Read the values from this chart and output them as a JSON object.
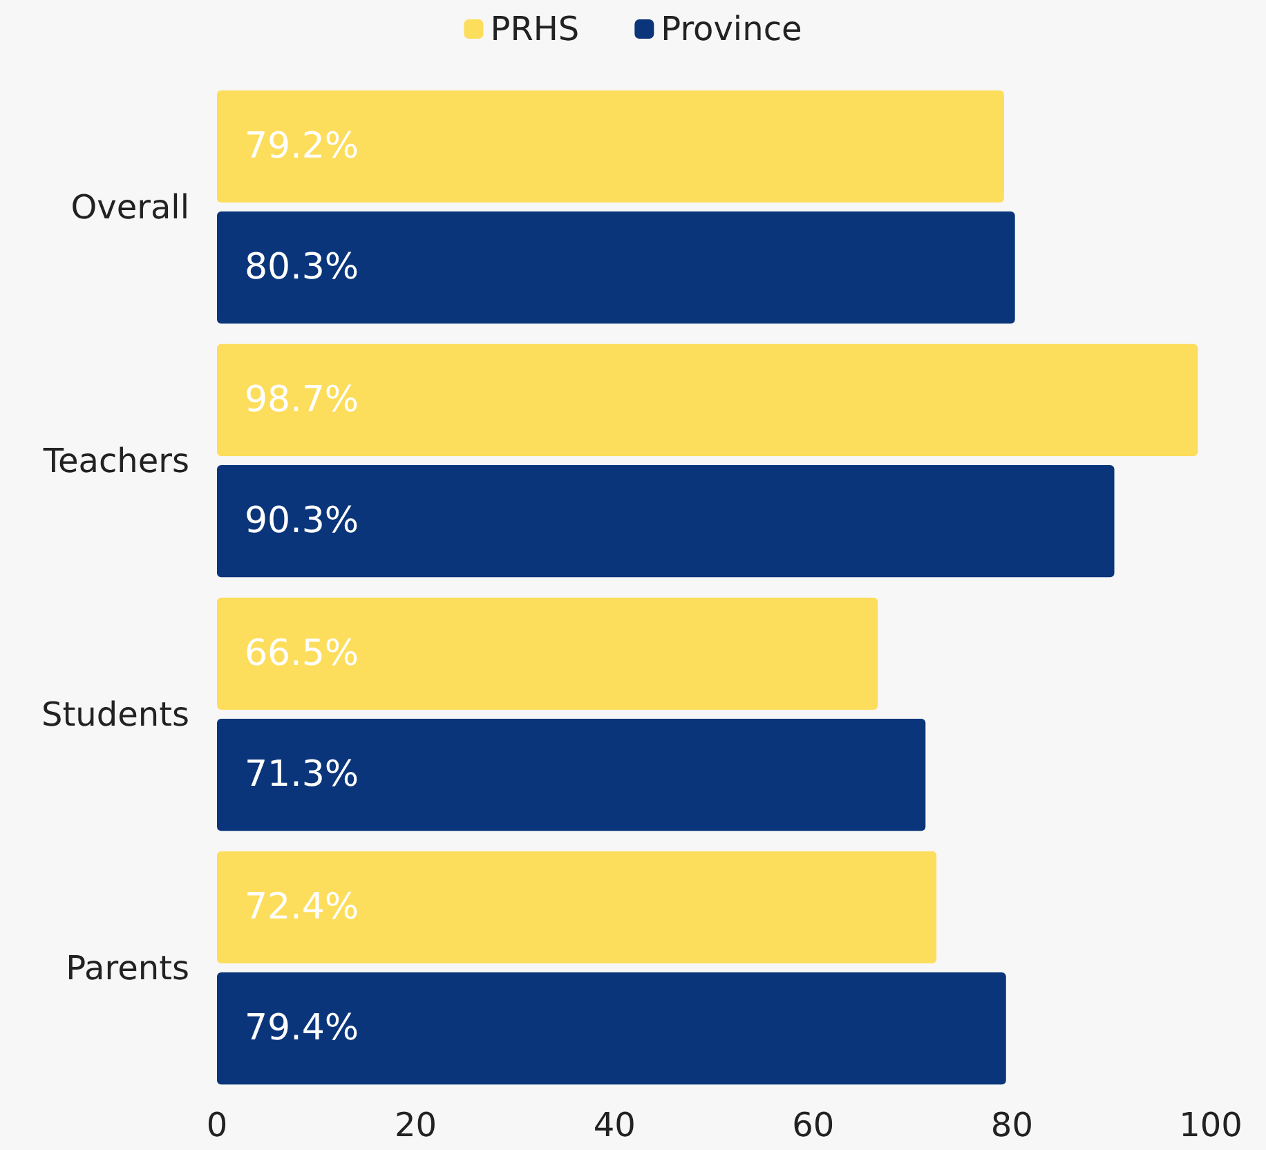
{
  "chart_data": {
    "type": "bar",
    "orientation": "horizontal",
    "categories": [
      "Overall",
      "Teachers",
      "Students",
      "Parents"
    ],
    "series": [
      {
        "name": "PRHS",
        "color": "#fddd5c",
        "values": [
          79.2,
          98.7,
          66.5,
          72.4
        ],
        "value_labels": [
          "79.2%",
          "98.7%",
          "66.5%",
          "72.4%"
        ]
      },
      {
        "name": "Province",
        "color": "#0a357a",
        "values": [
          80.3,
          90.3,
          71.3,
          79.4
        ],
        "value_labels": [
          "80.3%",
          "90.3%",
          "71.3%",
          "79.4%"
        ]
      }
    ],
    "xlim": [
      0,
      100
    ],
    "xticks": [
      0,
      20,
      40,
      60,
      80,
      100
    ],
    "grid": false,
    "legend": "top"
  }
}
